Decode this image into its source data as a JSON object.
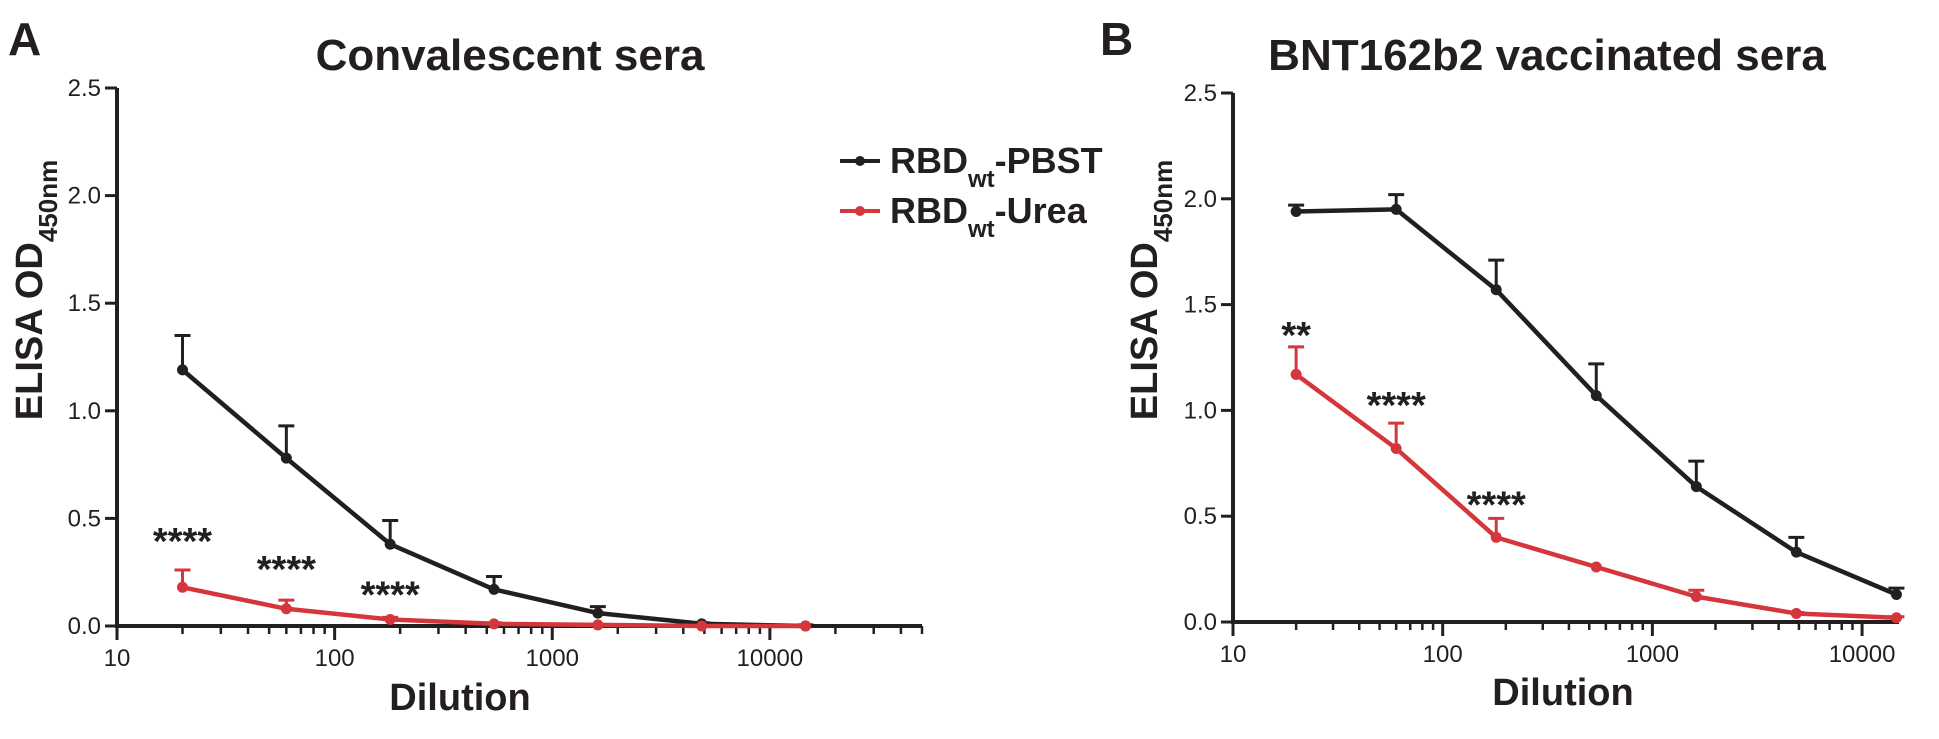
{
  "legend": [
    {
      "base": "RBD",
      "sub": "wt",
      "suffix": "-PBST",
      "color": "#231f20"
    },
    {
      "base": "RBD",
      "sub": "wt",
      "suffix": "-Urea",
      "color": "#d4363b"
    }
  ],
  "chart_data": [
    {
      "type": "line",
      "panel": "A",
      "title": "Convalescent sera",
      "xlabel": "Dilution",
      "ylabel": {
        "base": "ELISA OD",
        "sub": "450nm"
      },
      "xscale": "log",
      "xlim": [
        10,
        50000
      ],
      "ylim": [
        0,
        2.5
      ],
      "x_ticks": [
        10,
        100,
        1000,
        10000
      ],
      "x_tick_labels": [
        "10",
        "100",
        "1000",
        "10000"
      ],
      "y_ticks": [
        0,
        0.5,
        1,
        1.5,
        2,
        2.5
      ],
      "y_tick_labels": [
        "0.0",
        "0.5",
        "1.0",
        "1.5",
        "2.0",
        "2.5"
      ],
      "grid": false,
      "legend_position": "top-right",
      "series": [
        {
          "name": "RBDwt-PBST",
          "color": "#231f20",
          "x": [
            20,
            60,
            180,
            540,
            1620,
            4860,
            14580
          ],
          "y": [
            1.19,
            0.78,
            0.38,
            0.17,
            0.06,
            0.01,
            0.0
          ],
          "error": [
            0.16,
            0.15,
            0.11,
            0.06,
            0.03,
            0.005,
            0.005
          ]
        },
        {
          "name": "RBDwt-Urea",
          "color": "#d4363b",
          "x": [
            20,
            60,
            180,
            540,
            1620,
            4860,
            14580
          ],
          "y": [
            0.18,
            0.08,
            0.03,
            0.01,
            0.005,
            0.0,
            0.0
          ],
          "error": [
            0.08,
            0.04,
            0.01,
            0.005,
            0.0,
            0.0,
            0.0
          ]
        }
      ],
      "annotations": [
        {
          "text": "****",
          "x": 20,
          "y": 0.4
        },
        {
          "text": "****",
          "x": 60,
          "y": 0.27
        },
        {
          "text": "****",
          "x": 180,
          "y": 0.15
        }
      ]
    },
    {
      "type": "line",
      "panel": "B",
      "title": "BNT162b2 vaccinated sera",
      "xlabel": "Dilution",
      "ylabel": {
        "base": "ELISA OD",
        "sub": "450nm"
      },
      "xscale": "log",
      "xlim": [
        10,
        15000
      ],
      "ylim": [
        0,
        2.5
      ],
      "x_ticks": [
        10,
        100,
        1000,
        10000
      ],
      "x_tick_labels": [
        "10",
        "100",
        "1000",
        "10000"
      ],
      "y_ticks": [
        0,
        0.5,
        1,
        1.5,
        2,
        2.5
      ],
      "y_tick_labels": [
        "0.0",
        "0.5",
        "1.0",
        "1.5",
        "2.0",
        "2.5"
      ],
      "grid": false,
      "series": [
        {
          "name": "RBDwt-PBST",
          "color": "#231f20",
          "x": [
            20,
            60,
            180,
            540,
            1620,
            4860,
            14580
          ],
          "y": [
            1.94,
            1.95,
            1.57,
            1.07,
            0.64,
            0.33,
            0.13
          ],
          "error": [
            0.03,
            0.07,
            0.14,
            0.15,
            0.12,
            0.07,
            0.03
          ]
        },
        {
          "name": "RBDwt-Urea",
          "color": "#d4363b",
          "x": [
            20,
            60,
            180,
            540,
            1620,
            4860,
            14580
          ],
          "y": [
            1.17,
            0.82,
            0.4,
            0.26,
            0.12,
            0.04,
            0.02
          ],
          "error": [
            0.13,
            0.12,
            0.09,
            0.0,
            0.03,
            0.005,
            0.005
          ]
        }
      ],
      "annotations": [
        {
          "text": "**",
          "x": 20,
          "y": 1.36
        },
        {
          "text": "****",
          "x": 60,
          "y": 1.03
        },
        {
          "text": "****",
          "x": 180,
          "y": 0.56
        }
      ]
    }
  ]
}
